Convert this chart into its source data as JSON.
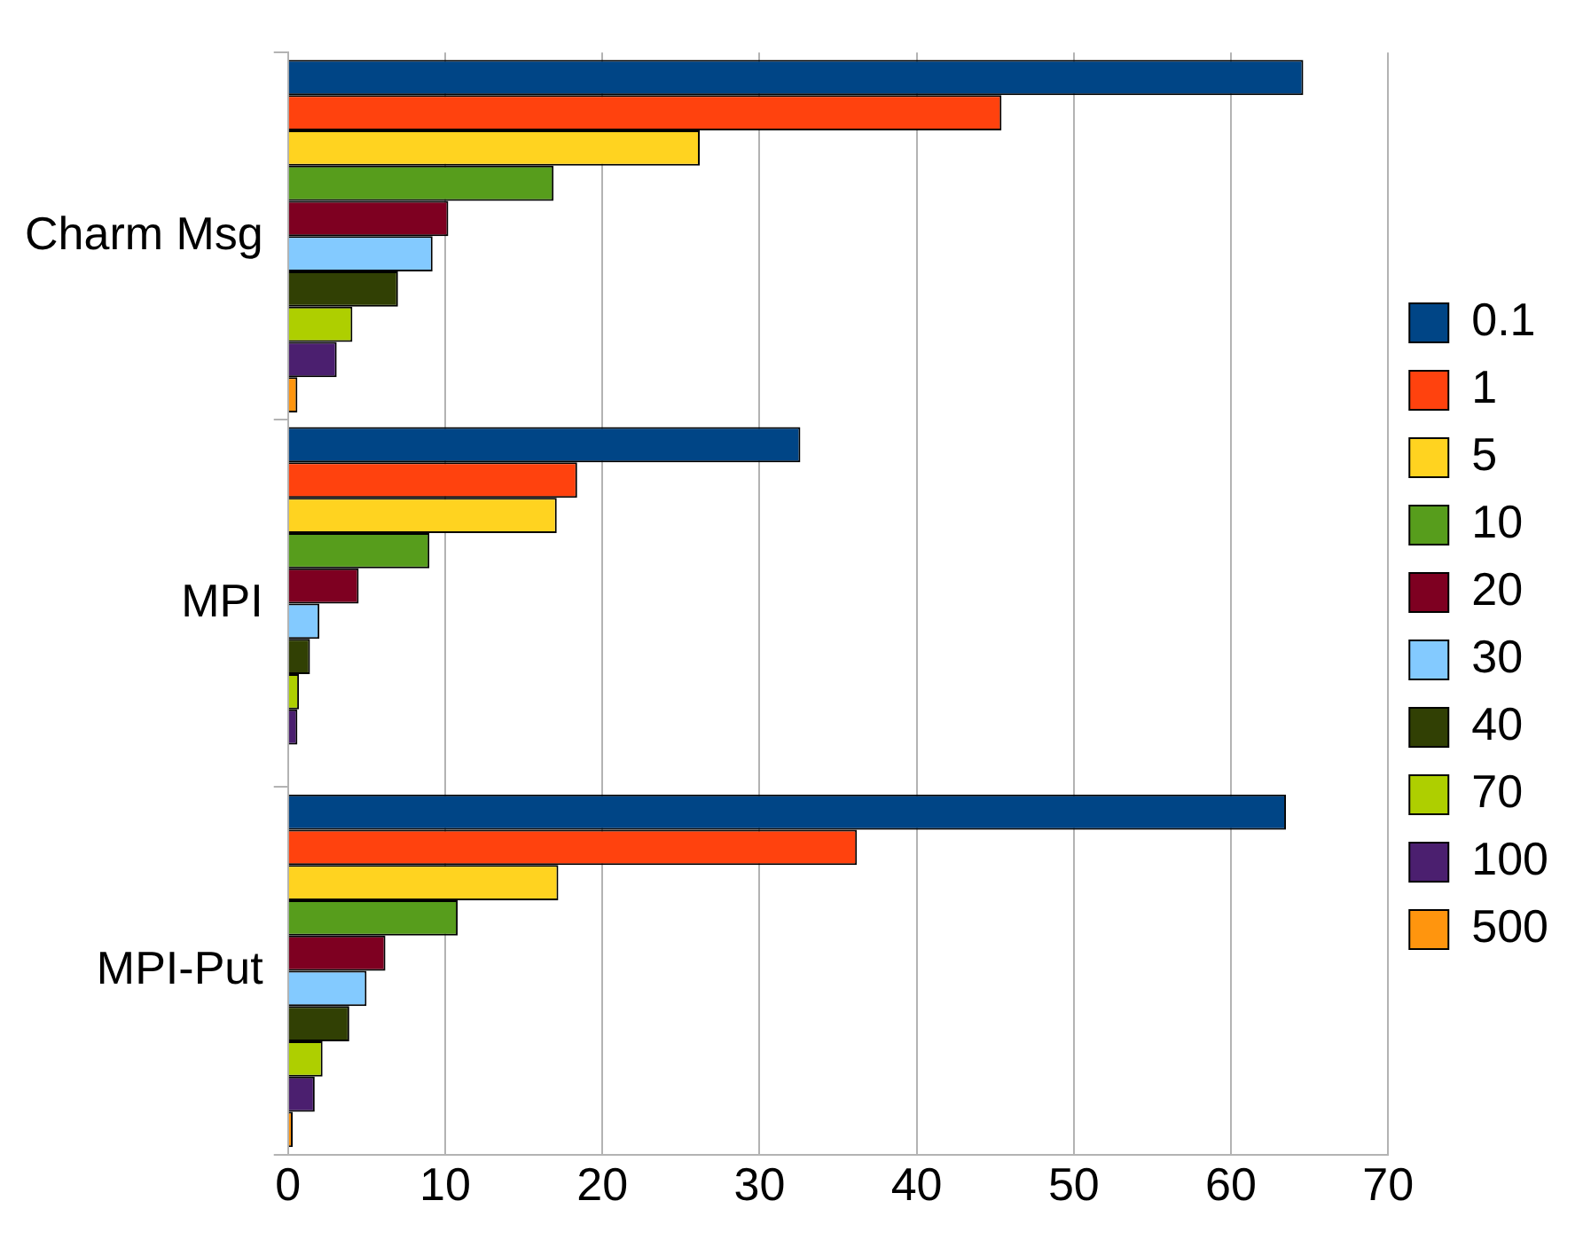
{
  "chart_data": {
    "type": "bar",
    "orientation": "horizontal",
    "categories": [
      "Charm Msg",
      "MPI",
      "MPI-Put"
    ],
    "series": [
      {
        "name": "0.1",
        "color": "#004586",
        "values": [
          64.6,
          32.6,
          63.5
        ]
      },
      {
        "name": "1",
        "color": "#ff420e",
        "values": [
          45.4,
          18.4,
          36.2
        ]
      },
      {
        "name": "5",
        "color": "#ffd320",
        "values": [
          26.2,
          17.1,
          17.2
        ]
      },
      {
        "name": "10",
        "color": "#579d1c",
        "values": [
          16.9,
          9.0,
          10.8
        ]
      },
      {
        "name": "20",
        "color": "#7e0021",
        "values": [
          10.2,
          4.5,
          6.2
        ]
      },
      {
        "name": "30",
        "color": "#83caff",
        "values": [
          9.2,
          2.0,
          5.0
        ]
      },
      {
        "name": "40",
        "color": "#314004",
        "values": [
          7.0,
          1.4,
          3.9
        ]
      },
      {
        "name": "70",
        "color": "#aecf00",
        "values": [
          4.1,
          0.7,
          2.2
        ]
      },
      {
        "name": "100",
        "color": "#4b1f6f",
        "values": [
          3.1,
          0.6,
          1.7
        ]
      },
      {
        "name": "500",
        "color": "#ff950e",
        "values": [
          0.6,
          null,
          0.3
        ]
      }
    ],
    "xlim": [
      0,
      70
    ],
    "xticks": [
      0,
      10,
      20,
      30,
      40,
      50,
      60,
      70
    ],
    "grid": "x",
    "legend": "right"
  }
}
